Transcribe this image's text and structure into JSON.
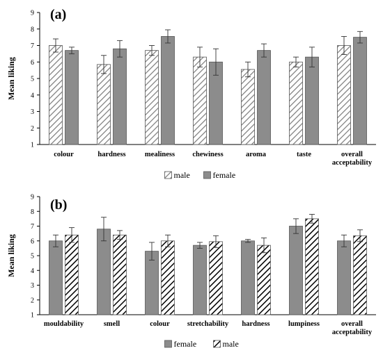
{
  "colors": {
    "solid": "#8c8c8c",
    "hatch_fg": "#000000",
    "hatch_bg": "#ffffff",
    "axis": "#000000"
  },
  "chart_data": [
    {
      "type": "bar",
      "panel_label": "(a)",
      "ylabel": "Mean liking",
      "xlabel": "",
      "ylim": [
        1,
        9
      ],
      "yticks": [
        1,
        2,
        3,
        4,
        5,
        6,
        7,
        8,
        9
      ],
      "grid": false,
      "legend_position": "bottom-center",
      "categories": [
        [
          "colour"
        ],
        [
          "hardness"
        ],
        [
          "mealiness"
        ],
        [
          "chewiness"
        ],
        [
          "aroma"
        ],
        [
          "taste"
        ],
        [
          "overall",
          "acceptability"
        ]
      ],
      "series": [
        {
          "name": "male",
          "pattern": "light-hatch",
          "values": [
            7.0,
            5.85,
            6.7,
            6.3,
            5.55,
            6.0,
            7.0
          ],
          "errors": [
            0.4,
            0.55,
            0.3,
            0.6,
            0.45,
            0.3,
            0.55
          ]
        },
        {
          "name": "female",
          "pattern": "solid",
          "values": [
            6.7,
            6.8,
            7.55,
            6.0,
            6.7,
            6.3,
            7.5
          ],
          "errors": [
            0.2,
            0.5,
            0.4,
            0.8,
            0.4,
            0.6,
            0.35
          ]
        }
      ]
    },
    {
      "type": "bar",
      "panel_label": "(b)",
      "ylabel": "Mean liking",
      "xlabel": "",
      "ylim": [
        1,
        9
      ],
      "yticks": [
        1,
        2,
        3,
        4,
        5,
        6,
        7,
        8,
        9
      ],
      "grid": false,
      "legend_position": "bottom-center",
      "categories": [
        [
          "mouldability"
        ],
        [
          "smell"
        ],
        [
          "colour"
        ],
        [
          "stretchability"
        ],
        [
          "hardness"
        ],
        [
          "lumpiness"
        ],
        [
          "overall",
          "acceptability"
        ]
      ],
      "series": [
        {
          "name": "female",
          "pattern": "solid",
          "values": [
            6.0,
            6.8,
            5.3,
            5.7,
            6.0,
            7.0,
            6.0
          ],
          "errors": [
            0.4,
            0.8,
            0.6,
            0.2,
            0.1,
            0.5,
            0.4
          ]
        },
        {
          "name": "male",
          "pattern": "bold-hatch",
          "values": [
            6.4,
            6.4,
            6.0,
            5.95,
            5.7,
            7.5,
            6.35
          ],
          "errors": [
            0.5,
            0.3,
            0.4,
            0.4,
            0.5,
            0.3,
            0.4
          ]
        }
      ]
    }
  ]
}
